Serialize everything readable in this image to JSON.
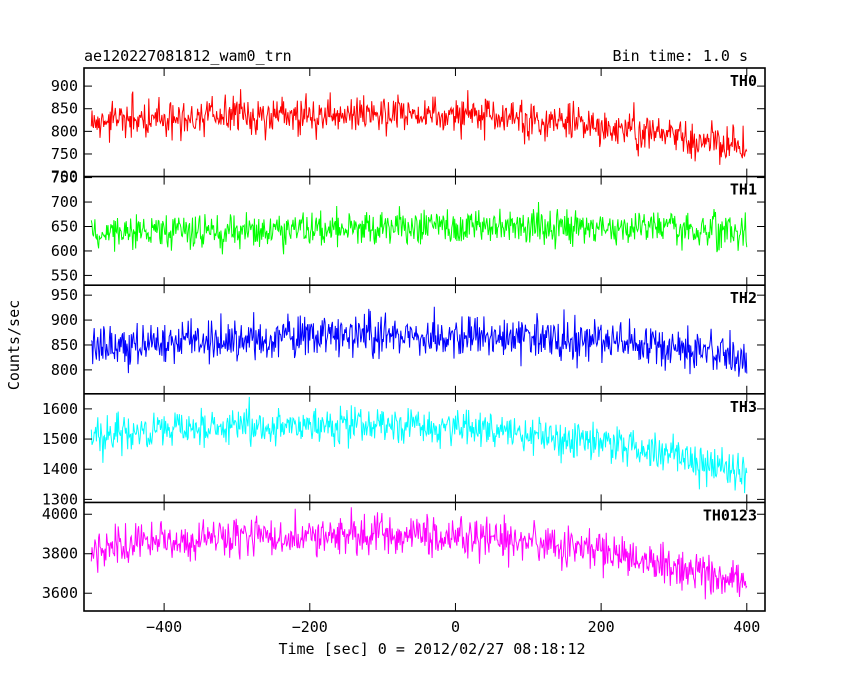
{
  "chart_data": {
    "type": "line",
    "title": "ae120227081812_wam0_trn",
    "subtitle": "Bin time: 1.0 s",
    "xlabel": "Time [sec] 0 = 2012/02/27 08:18:12",
    "ylabel": "Counts/sec",
    "xlim": [
      -510,
      425
    ],
    "x_range": [
      -500,
      400
    ],
    "x_step": 1,
    "xticks": [
      -400,
      -200,
      0,
      200,
      400
    ],
    "xtick_labels": [
      "−400",
      "−200",
      "0",
      "200",
      "400"
    ],
    "grid": false,
    "panels": [
      {
        "name": "TH0",
        "color": "#ff0000",
        "ylim": [
          700,
          940
        ],
        "yticks": [
          700,
          750,
          800,
          850,
          900
        ],
        "ytick_labels": [
          "700",
          "750",
          "800",
          "850",
          "900"
        ],
        "trend_x": [
          -500,
          -400,
          -300,
          -200,
          -100,
          0,
          100,
          200,
          300,
          400
        ],
        "trend_y": [
          820,
          830,
          835,
          838,
          840,
          835,
          825,
          810,
          790,
          765
        ],
        "noise_sd": 30
      },
      {
        "name": "TH1",
        "color": "#00ff00",
        "ylim": [
          530,
          752
        ],
        "yticks": [
          550,
          600,
          650,
          700,
          750
        ],
        "ytick_labels": [
          "550",
          "600",
          "650",
          "700",
          "750"
        ],
        "trend_x": [
          -500,
          -400,
          -300,
          -200,
          -100,
          0,
          100,
          200,
          300,
          400
        ],
        "trend_y": [
          638,
          640,
          642,
          645,
          648,
          650,
          650,
          648,
          645,
          640
        ],
        "noise_sd": 25
      },
      {
        "name": "TH2",
        "color": "#0000ff",
        "ylim": [
          752,
          970
        ],
        "yticks": [
          800,
          850,
          900,
          950
        ],
        "ytick_labels": [
          "800",
          "850",
          "900",
          "950"
        ],
        "trend_x": [
          -500,
          -400,
          -300,
          -200,
          -100,
          0,
          100,
          200,
          300,
          400
        ],
        "trend_y": [
          850,
          855,
          860,
          865,
          868,
          868,
          865,
          858,
          845,
          825
        ],
        "noise_sd": 30
      },
      {
        "name": "TH3",
        "color": "#00ffff",
        "ylim": [
          1290,
          1650
        ],
        "yticks": [
          1300,
          1400,
          1500,
          1600
        ],
        "ytick_labels": [
          "1300",
          "1400",
          "1500",
          "1600"
        ],
        "trend_x": [
          -500,
          -400,
          -300,
          -200,
          -100,
          0,
          100,
          200,
          300,
          400
        ],
        "trend_y": [
          1510,
          1530,
          1540,
          1545,
          1545,
          1535,
          1515,
          1485,
          1445,
          1390
        ],
        "noise_sd": 45
      },
      {
        "name": "TH0123",
        "color": "#ff00ff",
        "ylim": [
          3510,
          4060
        ],
        "yticks": [
          3600,
          3800,
          4000
        ],
        "ytick_labels": [
          "3600",
          "3800",
          "4000"
        ],
        "trend_x": [
          -500,
          -400,
          -300,
          -200,
          -100,
          0,
          100,
          200,
          300,
          400
        ],
        "trend_y": [
          3820,
          3860,
          3880,
          3890,
          3900,
          3890,
          3860,
          3810,
          3740,
          3640
        ],
        "noise_sd": 70
      }
    ]
  }
}
